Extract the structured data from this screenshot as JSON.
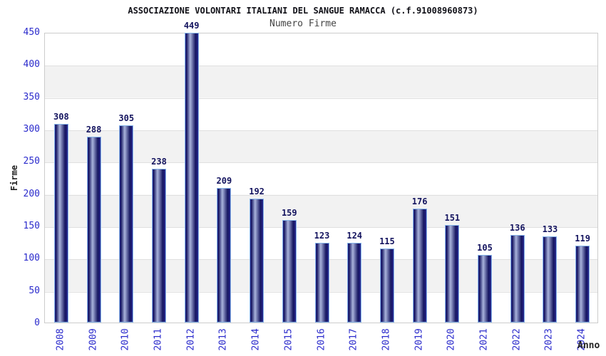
{
  "header": {
    "title": "ASSOCIAZIONE VOLONTARI ITALIANI DEL SANGUE RAMACCA (c.f.91008960873)",
    "subtitle": "Numero Firme"
  },
  "chart_data": {
    "type": "bar",
    "title": "ASSOCIAZIONE VOLONTARI ITALIANI DEL SANGUE RAMACCA (c.f.91008960873)",
    "subtitle": "Numero Firme",
    "categories": [
      "2008",
      "2009",
      "2010",
      "2011",
      "2012",
      "2013",
      "2014",
      "2015",
      "2016",
      "2017",
      "2018",
      "2019",
      "2020",
      "2021",
      "2022",
      "2023",
      "2024"
    ],
    "values": [
      308,
      288,
      305,
      238,
      449,
      209,
      192,
      159,
      123,
      124,
      115,
      176,
      151,
      105,
      136,
      133,
      119
    ],
    "xlabel": "Anno",
    "ylabel": "Firme",
    "ylim": [
      0,
      450
    ],
    "ytick_step": 50,
    "yticks": [
      0,
      50,
      100,
      150,
      200,
      250,
      300,
      350,
      400,
      450
    ],
    "grid": true,
    "band_fill": true,
    "legend": null,
    "colors": {
      "bar_dark": "#14145f",
      "bar_highlight": "#a9b3dc",
      "bar_border": "#86b4e9",
      "axis_tick_label": "#2b2bcc",
      "value_label": "#14145f",
      "band": "#f2f2f2",
      "grid_line": "#e0e0e0",
      "plot_border": "#cccccc",
      "title": "#111118",
      "subtitle": "#444444"
    }
  }
}
